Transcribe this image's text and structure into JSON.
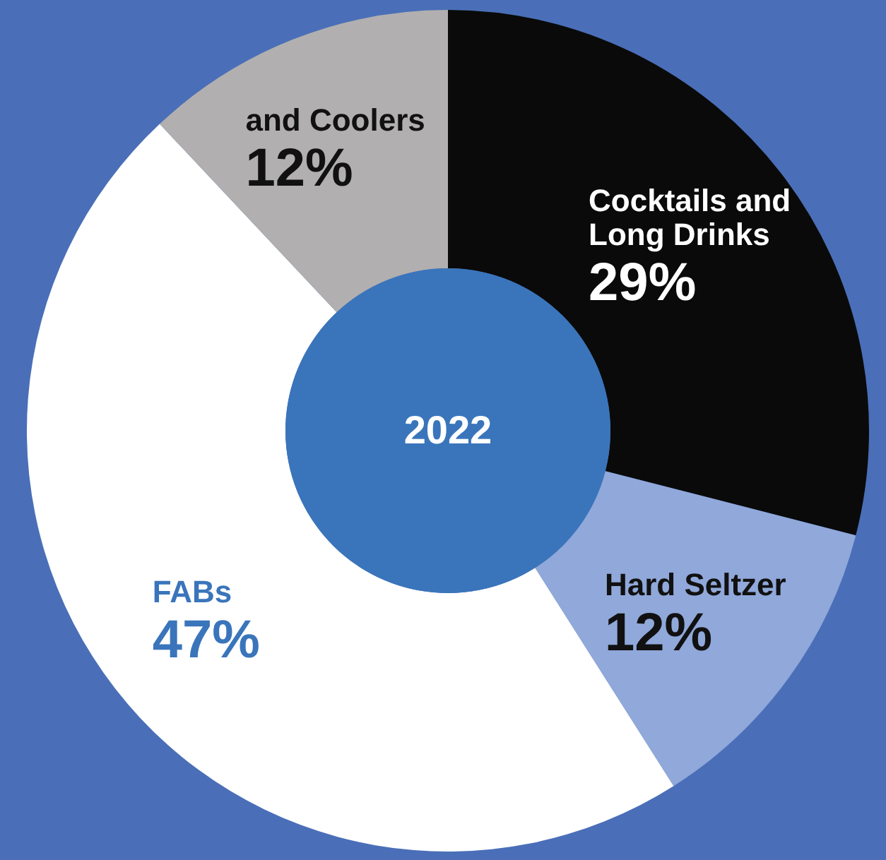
{
  "chart_data": {
    "type": "donut",
    "title": "2022",
    "categories": [
      "Cocktails and Long Drinks",
      "Hard Seltzer",
      "FABs",
      "and Coolers"
    ],
    "values": [
      29,
      12,
      47,
      12
    ],
    "colors": [
      "#0a0a0a",
      "#90a8da",
      "#ffffff",
      "#b1afaf"
    ],
    "value_labels": [
      "29%",
      "12%",
      "47%",
      "12%"
    ],
    "legend": false
  }
}
